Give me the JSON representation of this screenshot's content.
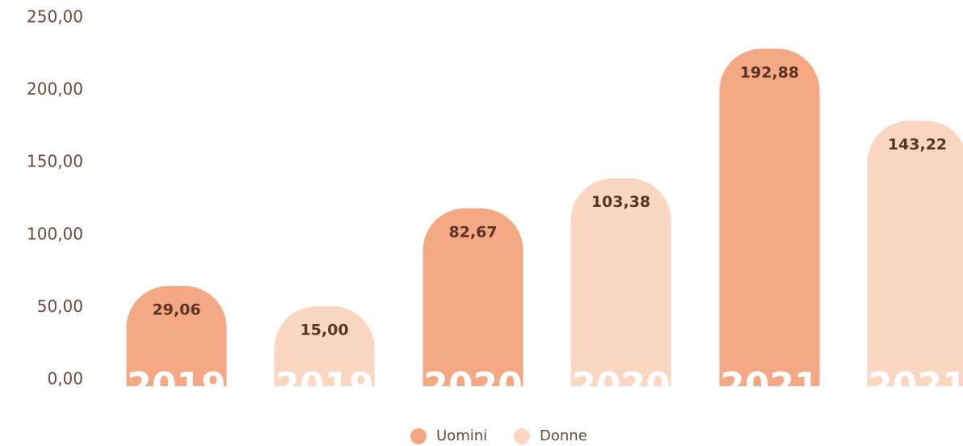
{
  "chart_data": {
    "type": "bar",
    "categories": [
      "2019",
      "2020",
      "2021"
    ],
    "series": [
      {
        "name": "Uomini",
        "color": "#f5a884",
        "values": [
          29.06,
          82.67,
          192.88
        ],
        "value_labels": [
          "29,06",
          "82,67",
          "192,88"
        ]
      },
      {
        "name": "Donne",
        "color": "#fbd6c1",
        "values": [
          15.0,
          103.38,
          143.22
        ],
        "value_labels": [
          "15,00",
          "103,38",
          "143,22"
        ]
      }
    ],
    "ylim": [
      0,
      250
    ],
    "yticks": [
      {
        "value": 0,
        "label": "0,00"
      },
      {
        "value": 50,
        "label": "50,00"
      },
      {
        "value": 100,
        "label": "100,00"
      },
      {
        "value": 150,
        "label": "150,00"
      },
      {
        "value": 200,
        "label": "200,00"
      },
      {
        "value": 250,
        "label": "250,00"
      }
    ],
    "grid": false
  }
}
